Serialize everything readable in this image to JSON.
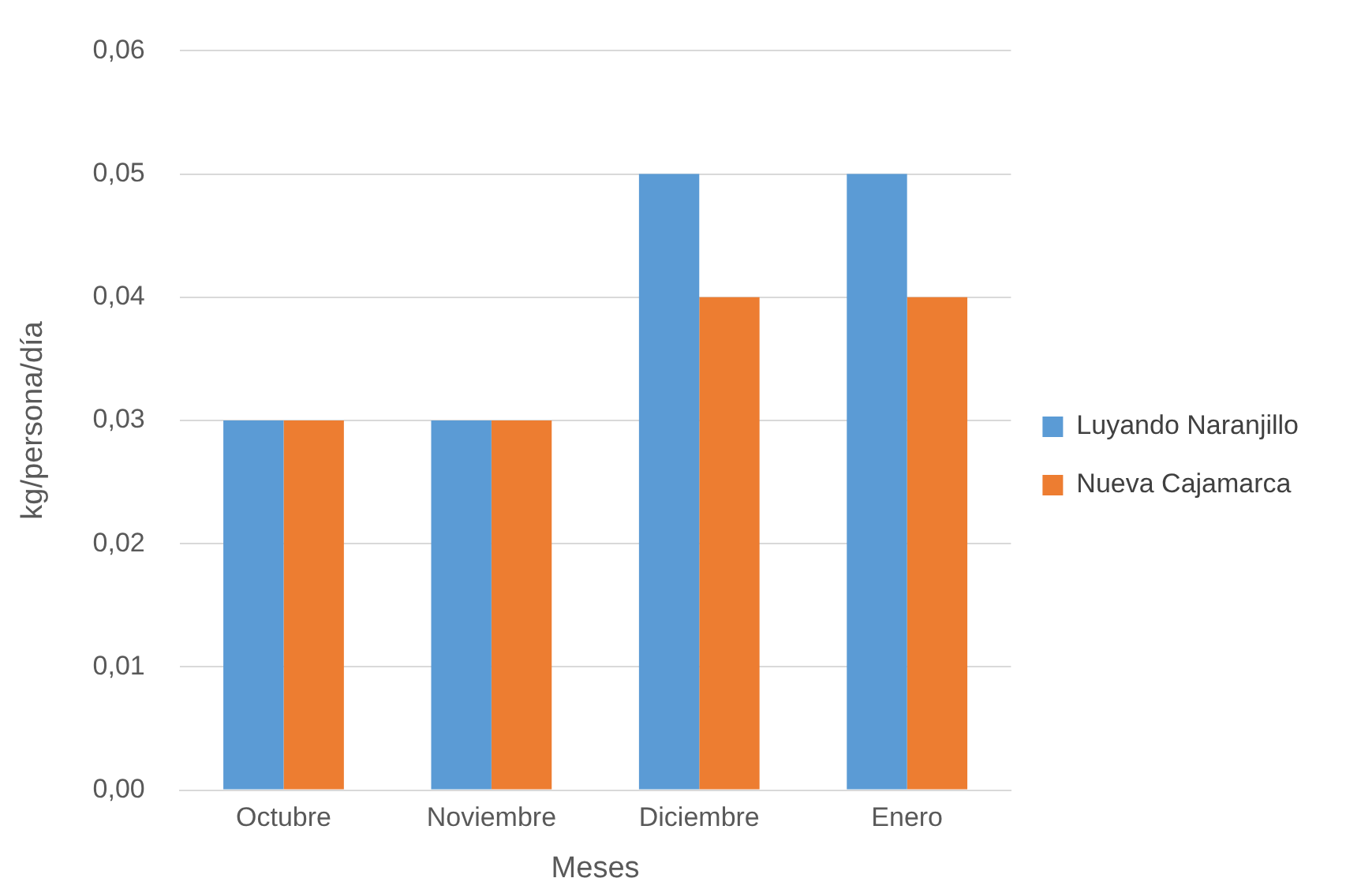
{
  "chart_data": {
    "type": "bar",
    "xlabel": "Meses",
    "ylabel": "kg/persona/día",
    "categories": [
      "Octubre",
      "Noviembre",
      "Diciembre",
      "Enero"
    ],
    "series": [
      {
        "name": "Luyando Naranjillo",
        "color": "#5b9bd5",
        "values": [
          0.03,
          0.03,
          0.05,
          0.05
        ]
      },
      {
        "name": "Nueva Cajamarca",
        "color": "#ed7d31",
        "values": [
          0.03,
          0.03,
          0.04,
          0.04
        ]
      }
    ],
    "ylim": [
      0,
      0.06
    ],
    "yticks": [
      {
        "value": 0,
        "label": "0,00"
      },
      {
        "value": 0.01,
        "label": "0,01"
      },
      {
        "value": 0.02,
        "label": "0,02"
      },
      {
        "value": 0.03,
        "label": "0,03"
      },
      {
        "value": 0.04,
        "label": "0,04"
      },
      {
        "value": 0.05,
        "label": "0,05"
      },
      {
        "value": 0.06,
        "label": "0,06"
      }
    ],
    "grid": "y",
    "legend": "right"
  }
}
